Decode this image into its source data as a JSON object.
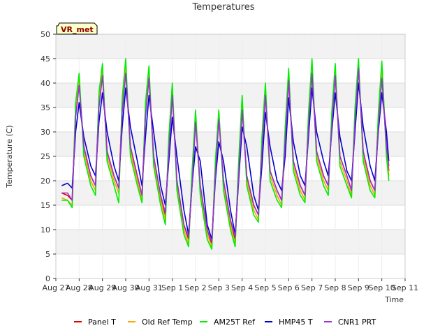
{
  "chart_data": {
    "type": "line",
    "title": "Temperatures",
    "xlabel": "Time",
    "ylabel": "Temperature (C)",
    "ylim": [
      0,
      50
    ],
    "yticks": [
      0,
      5,
      10,
      15,
      20,
      25,
      30,
      35,
      40,
      45,
      50
    ],
    "xlim": [
      0,
      15
    ],
    "xticks": [
      {
        "pos": 0,
        "label": "Aug 27"
      },
      {
        "pos": 1,
        "label": "Aug 28"
      },
      {
        "pos": 2,
        "label": "Aug 29"
      },
      {
        "pos": 3,
        "label": "Aug 30"
      },
      {
        "pos": 4,
        "label": "Aug 31"
      },
      {
        "pos": 5,
        "label": "Sep 1"
      },
      {
        "pos": 6,
        "label": "Sep 2"
      },
      {
        "pos": 7,
        "label": "Sep 3"
      },
      {
        "pos": 8,
        "label": "Sep 4"
      },
      {
        "pos": 9,
        "label": "Sep 5"
      },
      {
        "pos": 10,
        "label": "Sep 6"
      },
      {
        "pos": 11,
        "label": "Sep 7"
      },
      {
        "pos": 12,
        "label": "Sep 8"
      },
      {
        "pos": 13,
        "label": "Sep 9"
      },
      {
        "pos": 14,
        "label": "Sep 10"
      },
      {
        "pos": 15,
        "label": "Sep 11"
      }
    ],
    "grid_bands": true,
    "annotation": "VR_met",
    "legend_position": "bottom",
    "x_unit": "days since Aug 27 00:00",
    "series": [
      {
        "name": "Panel T",
        "color": "#dd0000",
        "x": [
          0.25,
          0.5,
          0.7,
          0.85,
          1.0,
          1.2,
          1.5,
          1.7,
          1.85,
          2.0,
          2.2,
          2.5,
          2.7,
          2.85,
          3.0,
          3.2,
          3.5,
          3.7,
          3.85,
          4.0,
          4.2,
          4.5,
          4.7,
          4.85,
          5.0,
          5.2,
          5.5,
          5.7,
          5.85,
          6.0,
          6.2,
          6.5,
          6.7,
          6.85,
          7.0,
          7.2,
          7.5,
          7.7,
          7.85,
          8.0,
          8.2,
          8.5,
          8.7,
          8.85,
          9.0,
          9.2,
          9.5,
          9.7,
          9.85,
          10.0,
          10.2,
          10.5,
          10.7,
          10.85,
          11.0,
          11.2,
          11.5,
          11.7,
          11.85,
          12.0,
          12.2,
          12.5,
          12.7,
          12.85,
          13.0,
          13.2,
          13.5,
          13.7,
          13.85,
          14.0,
          14.2,
          14.3
        ],
        "y": [
          17.5,
          17,
          16,
          34,
          40,
          27,
          21,
          19,
          36,
          42,
          26,
          21,
          18.5,
          35,
          42.5,
          27,
          21,
          17,
          34,
          41,
          25,
          17,
          13,
          27,
          38,
          20,
          11,
          8,
          20,
          33,
          19,
          10,
          7,
          22,
          33,
          20,
          12,
          8,
          22,
          35,
          21,
          15,
          13,
          27,
          38,
          22,
          18,
          16,
          29,
          41,
          24,
          19,
          17,
          32,
          42,
          26,
          21,
          19,
          32,
          42,
          25,
          21,
          18,
          33,
          43,
          26,
          20,
          18,
          32,
          42,
          27,
          22
        ]
      },
      {
        "name": "Old Ref Temp",
        "color": "#ffa500",
        "x": [
          0.25,
          0.5,
          0.7,
          0.85,
          1.0,
          1.2,
          1.5,
          1.7,
          1.85,
          2.0,
          2.2,
          2.5,
          2.7,
          2.85,
          3.0,
          3.2,
          3.5,
          3.7,
          3.85,
          4.0,
          4.2,
          4.5,
          4.7,
          4.85,
          5.0,
          5.2,
          5.5,
          5.7,
          5.85,
          6.0,
          6.2,
          6.5,
          6.7,
          6.85,
          7.0,
          7.2,
          7.5,
          7.7,
          7.85,
          8.0,
          8.2,
          8.5,
          8.7,
          8.85,
          9.0,
          9.2,
          9.5,
          9.7,
          9.85,
          10.0,
          10.2,
          10.5,
          10.7,
          10.85,
          11.0,
          11.2,
          11.5,
          11.7,
          11.85,
          12.0,
          12.2,
          12.5,
          12.7,
          12.85,
          13.0,
          13.2,
          13.5,
          13.7,
          13.85,
          14.0,
          14.2,
          14.3
        ],
        "y": [
          16.5,
          16,
          15,
          35,
          41,
          26,
          20,
          18,
          37,
          43,
          25,
          20,
          17.5,
          36,
          43.5,
          26,
          20,
          16,
          35,
          42,
          24,
          16,
          12,
          28,
          39,
          19,
          10,
          7,
          21,
          34,
          18,
          9,
          6.5,
          23,
          34,
          19,
          11,
          7,
          23,
          36,
          20,
          14,
          12,
          28,
          39,
          21,
          17,
          15,
          30,
          42,
          23,
          18,
          16,
          33,
          43,
          25,
          20,
          18,
          33,
          43,
          24,
          20,
          17,
          34,
          44,
          25,
          19,
          17,
          33,
          43,
          26,
          21
        ]
      },
      {
        "name": "AM25T Ref",
        "color": "#00ee00",
        "x": [
          0.25,
          0.5,
          0.7,
          0.85,
          1.0,
          1.2,
          1.5,
          1.7,
          1.85,
          2.0,
          2.2,
          2.5,
          2.7,
          2.85,
          3.0,
          3.2,
          3.5,
          3.7,
          3.85,
          4.0,
          4.2,
          4.5,
          4.7,
          4.85,
          5.0,
          5.2,
          5.5,
          5.7,
          5.85,
          6.0,
          6.2,
          6.5,
          6.7,
          6.85,
          7.0,
          7.2,
          7.5,
          7.7,
          7.85,
          8.0,
          8.2,
          8.5,
          8.7,
          8.85,
          9.0,
          9.2,
          9.5,
          9.7,
          9.85,
          10.0,
          10.2,
          10.5,
          10.7,
          10.85,
          11.0,
          11.2,
          11.5,
          11.7,
          11.85,
          12.0,
          12.2,
          12.5,
          12.7,
          12.85,
          13.0,
          13.2,
          13.5,
          13.7,
          13.85,
          14.0,
          14.2,
          14.3
        ],
        "y": [
          16,
          16,
          14.5,
          36,
          42,
          25,
          19,
          17,
          38,
          44,
          24,
          19,
          15.5,
          37,
          45,
          25,
          19,
          15.5,
          36,
          43.5,
          23,
          15,
          11,
          29,
          40,
          18,
          9,
          6.5,
          22,
          34.5,
          17,
          8,
          6,
          24,
          34.5,
          18,
          10,
          6.5,
          24,
          37.5,
          19,
          13,
          11.5,
          29,
          40,
          20,
          16,
          14.5,
          31,
          43,
          22,
          17,
          15.5,
          34,
          45,
          24,
          19,
          17,
          34,
          44,
          23,
          19,
          16.5,
          35,
          45,
          24,
          18,
          16.5,
          34,
          44.5,
          25,
          20
        ]
      },
      {
        "name": "HMP45 T",
        "color": "#0000cc",
        "x": [
          0.25,
          0.5,
          0.7,
          0.85,
          1.0,
          1.2,
          1.5,
          1.7,
          1.85,
          2.0,
          2.2,
          2.5,
          2.7,
          2.85,
          3.0,
          3.2,
          3.5,
          3.7,
          3.85,
          4.0,
          4.2,
          4.5,
          4.7,
          4.85,
          5.0,
          5.2,
          5.5,
          5.7,
          5.85,
          6.0,
          6.2,
          6.5,
          6.7,
          6.85,
          7.0,
          7.2,
          7.5,
          7.7,
          7.85,
          8.0,
          8.2,
          8.5,
          8.7,
          8.85,
          9.0,
          9.2,
          9.5,
          9.7,
          9.85,
          10.0,
          10.2,
          10.5,
          10.7,
          10.85,
          11.0,
          11.2,
          11.5,
          11.7,
          11.85,
          12.0,
          12.2,
          12.5,
          12.7,
          12.85,
          13.0,
          13.2,
          13.5,
          13.7,
          13.85,
          14.0,
          14.2,
          14.3
        ],
        "y": [
          19,
          19.5,
          18.5,
          30,
          36,
          29,
          23,
          21,
          32,
          38,
          30,
          23,
          20,
          31,
          39,
          31,
          24,
          19,
          29,
          37.5,
          30,
          19,
          15,
          24,
          33,
          25,
          14,
          9,
          19,
          27,
          24,
          11,
          8,
          20,
          28,
          24,
          14,
          9,
          20,
          31,
          27,
          17,
          14,
          23,
          34,
          27,
          20,
          18,
          25,
          37,
          28,
          21,
          19,
          29,
          39,
          30,
          24,
          21,
          30,
          38,
          29,
          22,
          20,
          30,
          40,
          31,
          23,
          20,
          30,
          38,
          30,
          24
        ]
      },
      {
        "name": "CNR1 PRT",
        "color": "#9933cc",
        "x": [
          0.25,
          0.5,
          0.7,
          0.85,
          1.0,
          1.2,
          1.5,
          1.7,
          1.85,
          2.0,
          2.2,
          2.5,
          2.7,
          2.85,
          3.0,
          3.2,
          3.5,
          3.7,
          3.85,
          4.0,
          4.2,
          4.5,
          4.7,
          4.85,
          5.0,
          5.2,
          5.5,
          5.7,
          5.85,
          6.0,
          6.2,
          6.5,
          6.7,
          6.85,
          7.0,
          7.2,
          7.5,
          7.7,
          7.85,
          8.0,
          8.2,
          8.5,
          8.7,
          8.85,
          9.0,
          9.2,
          9.5,
          9.7,
          9.85,
          10.0,
          10.2,
          10.5,
          10.7,
          10.85,
          11.0,
          11.2,
          11.5,
          11.7,
          11.85,
          12.0,
          12.2,
          12.5,
          12.7,
          12.85,
          13.0,
          13.2,
          13.5,
          13.7,
          13.85,
          14.0,
          14.2,
          14.3
        ],
        "y": [
          17.5,
          17.5,
          16,
          33,
          39.5,
          27,
          21,
          19,
          35,
          41.5,
          26,
          21,
          18.5,
          34,
          42,
          27,
          21,
          17,
          33,
          41,
          25,
          17,
          13.5,
          26,
          37.5,
          20,
          11,
          8.5,
          19,
          32,
          19,
          10,
          7.5,
          21,
          32.5,
          20,
          12,
          8.5,
          21,
          34.5,
          21,
          15,
          13,
          26,
          37.5,
          22,
          18,
          16,
          28,
          40.5,
          24,
          19,
          17,
          31,
          42,
          26,
          21,
          19,
          31,
          41.5,
          25,
          21,
          18,
          32,
          43,
          26,
          20,
          18,
          31,
          41,
          27,
          23
        ]
      }
    ]
  }
}
